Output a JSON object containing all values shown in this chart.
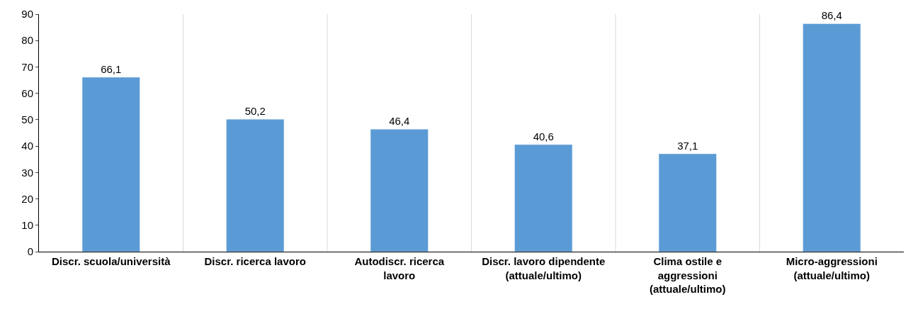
{
  "chart_data": {
    "type": "bar",
    "categories": [
      "Discr. scuola/università",
      "Discr. ricerca lavoro",
      "Autodiscr. ricerca lavoro",
      "Discr. lavoro dipendente (attuale/ultimo)",
      "Clima ostile e aggressioni (attuale/ultimo)",
      "Micro-aggressioni (attuale/ultimo)"
    ],
    "values": [
      66.1,
      50.2,
      46.4,
      40.6,
      37.1,
      86.4
    ],
    "value_labels": [
      "66,1",
      "50,2",
      "46,4",
      "40,6",
      "37,1",
      "86,4"
    ],
    "color": "#5b9bd5",
    "ylim": [
      0,
      90
    ],
    "yticks": [
      0,
      10,
      20,
      30,
      40,
      50,
      60,
      70,
      80,
      90
    ],
    "grid": "x",
    "legend": false
  }
}
